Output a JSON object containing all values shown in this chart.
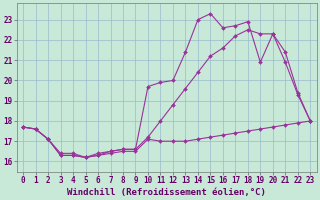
{
  "x": [
    0,
    1,
    2,
    3,
    4,
    5,
    6,
    7,
    8,
    9,
    10,
    11,
    12,
    13,
    14,
    15,
    16,
    17,
    18,
    19,
    20,
    21,
    22,
    23
  ],
  "line1": [
    17.7,
    17.6,
    17.1,
    16.3,
    16.3,
    16.2,
    16.3,
    16.4,
    16.5,
    16.5,
    17.1,
    17.0,
    17.0,
    17.0,
    17.1,
    17.2,
    17.3,
    17.4,
    17.5,
    17.6,
    17.7,
    17.8,
    17.9,
    18.0
  ],
  "line2": [
    17.7,
    17.6,
    17.1,
    16.3,
    16.3,
    16.2,
    16.3,
    16.5,
    16.6,
    16.6,
    19.7,
    19.9,
    20.0,
    21.4,
    23.0,
    23.3,
    22.6,
    22.7,
    22.9,
    20.9,
    22.3,
    20.9,
    19.3,
    18.0
  ],
  "line3": [
    17.7,
    17.6,
    17.1,
    16.4,
    16.4,
    16.2,
    16.4,
    16.5,
    16.6,
    16.6,
    17.2,
    18.0,
    18.8,
    19.6,
    20.4,
    21.2,
    21.6,
    22.2,
    22.5,
    22.3,
    22.3,
    21.4,
    19.4,
    18.0
  ],
  "line_color": "#993399",
  "bg_color": "#c8e8d8",
  "grid_color": "#99bbcc",
  "xlabel": "Windchill (Refroidissement éolien,°C)",
  "xlabel_color": "#660066",
  "tick_color": "#660066",
  "xlabel_fontsize": 6.5,
  "tick_fontsize": 5.5,
  "ylim": [
    15.5,
    23.8
  ],
  "yticks": [
    16,
    17,
    18,
    19,
    20,
    21,
    22,
    23
  ],
  "xlim": [
    -0.5,
    23.5
  ],
  "xticks": [
    0,
    1,
    2,
    3,
    4,
    5,
    6,
    7,
    8,
    9,
    10,
    11,
    12,
    13,
    14,
    15,
    16,
    17,
    18,
    19,
    20,
    21,
    22,
    23
  ]
}
